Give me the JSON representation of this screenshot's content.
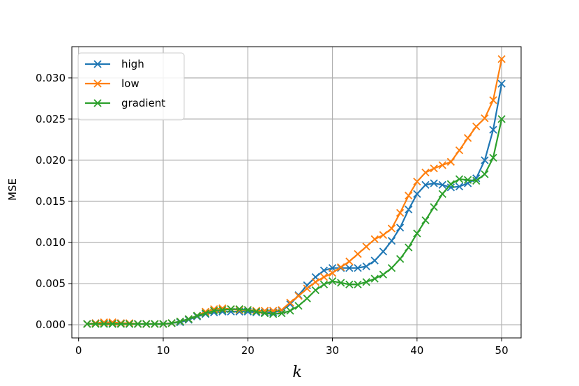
{
  "chart_data": {
    "type": "line",
    "xlabel": "k",
    "ylabel": "MSE",
    "xlim": [
      -0.8,
      52.3
    ],
    "ylim": [
      -0.0016,
      0.0338
    ],
    "x_ticks": [
      0,
      10,
      20,
      30,
      40,
      50
    ],
    "y_ticks": [
      0.0,
      0.005,
      0.01,
      0.015,
      0.02,
      0.025,
      0.03
    ],
    "x_tick_labels": [
      "0",
      "10",
      "20",
      "30",
      "40",
      "50"
    ],
    "y_tick_labels": [
      "0.000",
      "0.005",
      "0.010",
      "0.015",
      "0.020",
      "0.025",
      "0.030"
    ],
    "grid": true,
    "legend_position": "top-left",
    "marker": "x",
    "x": [
      1,
      2,
      3,
      4,
      5,
      6,
      7,
      8,
      9,
      10,
      11,
      12,
      13,
      14,
      15,
      16,
      17,
      18,
      19,
      20,
      21,
      22,
      23,
      24,
      25,
      26,
      27,
      28,
      29,
      30,
      31,
      32,
      33,
      34,
      35,
      36,
      37,
      38,
      39,
      40,
      41,
      42,
      43,
      44,
      45,
      46,
      47,
      48,
      49,
      50
    ],
    "series": [
      {
        "name": "high",
        "color": "#1f77b4",
        "values": [
          0.0001,
          0.0002,
          0.0002,
          0.0002,
          0.0002,
          0.0001,
          0.0001,
          0.0001,
          0.0001,
          0.0001,
          0.0002,
          0.0003,
          0.0006,
          0.001,
          0.0013,
          0.0015,
          0.0016,
          0.0016,
          0.0016,
          0.0016,
          0.0015,
          0.0015,
          0.0015,
          0.0017,
          0.0025,
          0.0036,
          0.0048,
          0.0058,
          0.0066,
          0.0069,
          0.0069,
          0.0069,
          0.0069,
          0.0071,
          0.0078,
          0.0089,
          0.0102,
          0.0118,
          0.014,
          0.0159,
          0.017,
          0.0172,
          0.017,
          0.0167,
          0.0168,
          0.0172,
          0.0178,
          0.02,
          0.0237,
          0.0293
        ]
      },
      {
        "name": "low",
        "color": "#ff7f0e",
        "values": [
          0.0001,
          0.0002,
          0.0003,
          0.0003,
          0.0002,
          0.0002,
          0.0001,
          0.0001,
          0.0001,
          0.0001,
          0.0002,
          0.0004,
          0.0007,
          0.0011,
          0.0016,
          0.0019,
          0.002,
          0.0019,
          0.0018,
          0.0018,
          0.0017,
          0.0017,
          0.0017,
          0.0018,
          0.0027,
          0.0035,
          0.0044,
          0.0052,
          0.0058,
          0.0063,
          0.007,
          0.0077,
          0.0086,
          0.0095,
          0.0104,
          0.0109,
          0.0117,
          0.0136,
          0.0157,
          0.0174,
          0.0185,
          0.019,
          0.0194,
          0.0198,
          0.0212,
          0.0227,
          0.0241,
          0.0251,
          0.0273,
          0.0323
        ]
      },
      {
        "name": "gradient",
        "color": "#2ca02c",
        "values": [
          0.0001,
          0.0001,
          0.0001,
          0.0001,
          0.0001,
          0.0001,
          0.0001,
          0.0001,
          0.0001,
          0.0001,
          0.0002,
          0.0004,
          0.0007,
          0.0011,
          0.0014,
          0.0017,
          0.0018,
          0.0019,
          0.0019,
          0.0018,
          0.0016,
          0.0014,
          0.0013,
          0.0014,
          0.0017,
          0.0023,
          0.0032,
          0.0042,
          0.0049,
          0.0053,
          0.0051,
          0.0049,
          0.0049,
          0.0052,
          0.0056,
          0.0061,
          0.0069,
          0.008,
          0.0094,
          0.0111,
          0.0127,
          0.0143,
          0.0159,
          0.0171,
          0.0177,
          0.0176,
          0.0175,
          0.0183,
          0.0203,
          0.025
        ]
      }
    ]
  }
}
